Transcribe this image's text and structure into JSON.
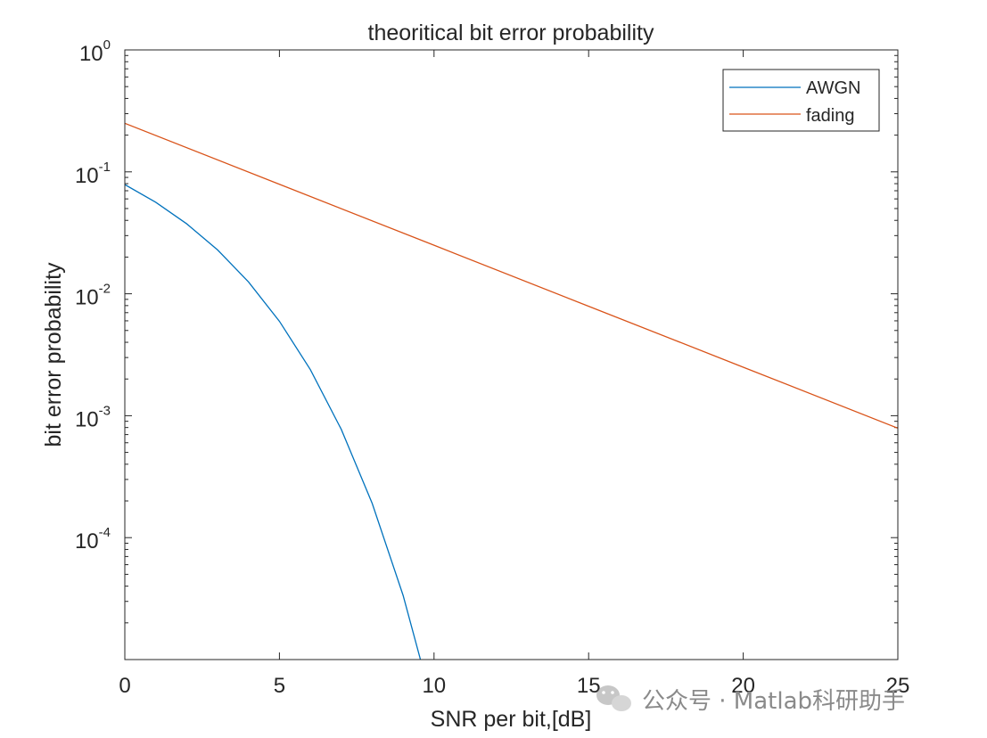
{
  "chart_data": {
    "type": "line",
    "title": "theoritical bit error probability",
    "xlabel": "SNR per bit,[dB]",
    "ylabel": "bit error probability",
    "xlim": [
      0,
      25
    ],
    "ylim": [
      1e-05,
      1
    ],
    "yscale": "log",
    "grid": false,
    "legend_position": "top-right",
    "x_ticks": [
      0,
      5,
      10,
      15,
      20,
      25
    ],
    "x_tick_labels": [
      "0",
      "5",
      "10",
      "15",
      "20",
      "25"
    ],
    "y_ticks": [
      {
        "value": 1,
        "base": "10",
        "exp": "0"
      },
      {
        "value": 0.1,
        "base": "10",
        "exp": "-1"
      },
      {
        "value": 0.01,
        "base": "10",
        "exp": "-2"
      },
      {
        "value": 0.001,
        "base": "10",
        "exp": "-3"
      },
      {
        "value": 0.0001,
        "base": "10",
        "exp": "-4"
      }
    ],
    "series": [
      {
        "name": "AWGN",
        "color": "#0072BD",
        "x": [
          0,
          1,
          2,
          3,
          4,
          5,
          6,
          7,
          8,
          9,
          10
        ],
        "y": [
          0.0786,
          0.0563,
          0.0375,
          0.0229,
          0.0125,
          0.00595,
          0.00239,
          0.000773,
          0.000191,
          3.36e-05,
          3.87e-06
        ]
      },
      {
        "name": "fading",
        "color": "#D95319",
        "x": [
          0,
          5,
          10,
          15,
          20,
          25
        ],
        "y": [
          0.25,
          0.0791,
          0.025,
          0.0079,
          0.0025,
          0.00079
        ]
      }
    ]
  },
  "watermark": {
    "text": "公众号 · Matlab科研助手",
    "icon": "wechat-icon"
  }
}
